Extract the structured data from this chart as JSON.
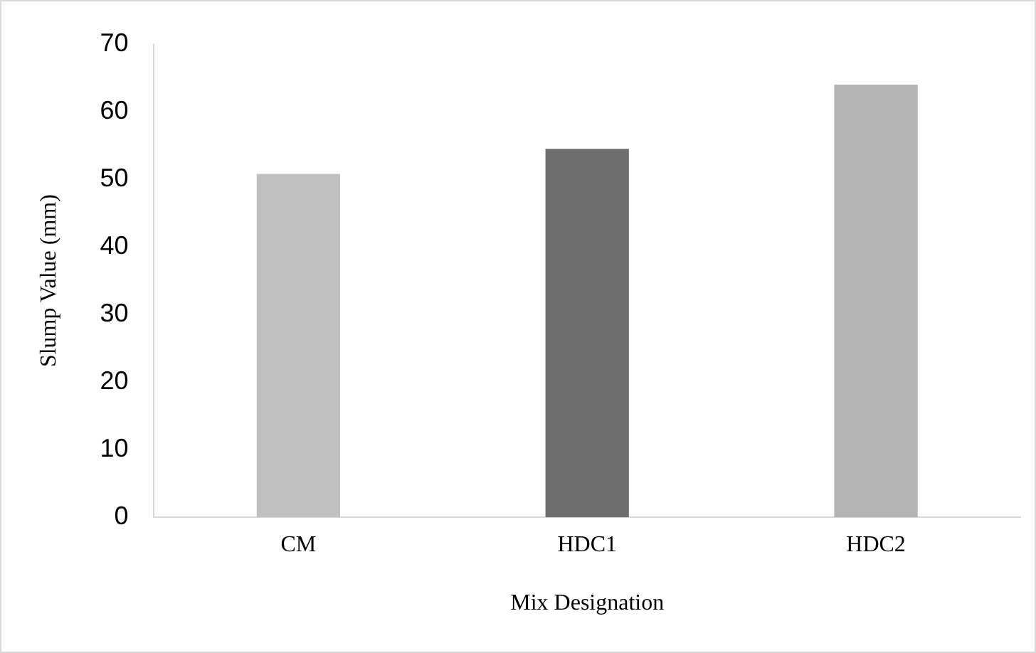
{
  "chart_data": {
    "type": "bar",
    "xlabel": "Mix Designation",
    "ylabel": "Slump Value (mm)",
    "categories": [
      "CM",
      "HDC1",
      "HDC2"
    ],
    "values": [
      50.8,
      54.5,
      64
    ],
    "colors": [
      "#c0c0c0",
      "#6e6e6e",
      "#b4b4b4"
    ],
    "ylim": [
      0,
      70
    ],
    "yticks": [
      0,
      10,
      20,
      30,
      40,
      50,
      60,
      70
    ],
    "grid": false,
    "legend": false
  }
}
